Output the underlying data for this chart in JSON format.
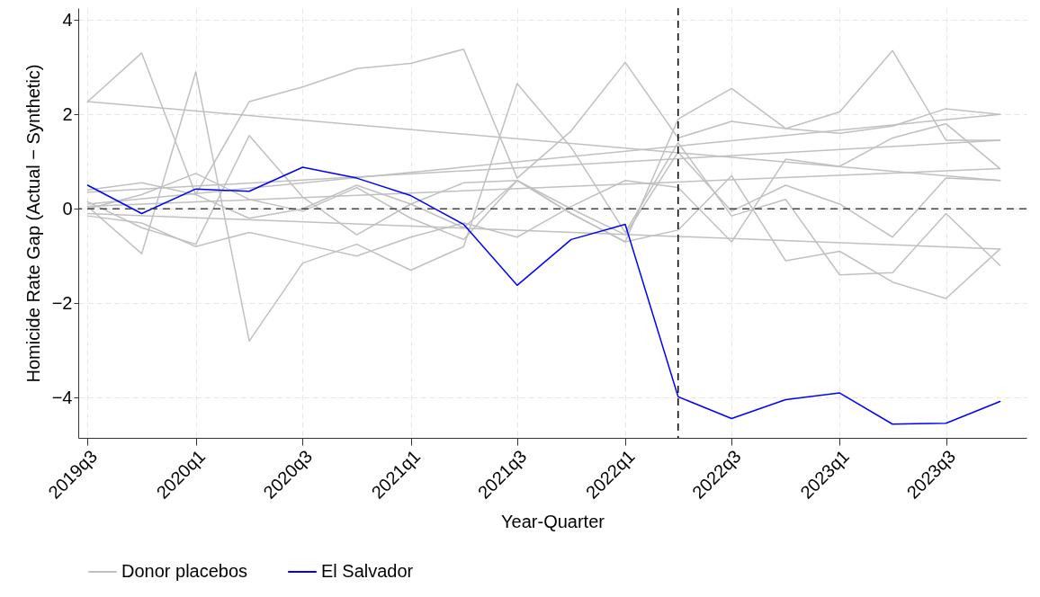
{
  "chart_data": {
    "type": "line",
    "xlabel": "Year-Quarter",
    "ylabel": "Homicide Rate Gap (Actual − Synthetic)",
    "x": [
      "2019-07",
      "2019-10",
      "2020-01",
      "2020-04",
      "2020-07",
      "2020-10",
      "2021-01",
      "2021-04",
      "2021-07",
      "2021-10",
      "2022-01",
      "2022-04",
      "2022-07",
      "2022-10",
      "2023-01",
      "2023-04",
      "2023-07",
      "2023-10"
    ],
    "series": [
      {
        "name": "Donor placebos",
        "color": "#c0c0c0",
        "values": [
          2.27,
          3.3,
          0.3,
          -0.2,
          0.0,
          0.5,
          0.1,
          -0.4,
          0.6,
          -0.1,
          -0.7,
          1.9,
          2.55,
          1.7,
          2.05,
          3.35,
          1.45,
          1.45
        ]
      },
      {
        "color": "#c0c0c0",
        "values": [
          0.05,
          -0.95,
          2.9,
          -2.8,
          -1.15,
          -0.75,
          -1.3,
          -0.8,
          2.65,
          1.3,
          -0.5,
          1.4,
          -0.15,
          0.2,
          -1.4,
          -1.35,
          -0.1,
          -1.2
        ]
      },
      {
        "color": "#c0c0c0",
        "values": [
          0.4,
          0.55,
          0.3,
          2.27,
          2.58,
          2.97,
          3.08,
          3.38,
          0.65,
          1.65,
          3.1,
          1.5,
          1.85,
          1.7,
          1.6,
          1.75,
          2.12,
          2.0
        ]
      },
      {
        "color": "#c0c0c0",
        "values": [
          0.15,
          -0.4,
          -0.75,
          1.55,
          0.25,
          -0.55,
          0.1,
          0.55,
          0.6,
          -0.1,
          -0.7,
          -0.45,
          0.7,
          -1.1,
          -0.9,
          -1.55,
          -1.9,
          -0.85
        ]
      },
      {
        "color": "#c0c0c0",
        "values": [
          -0.15,
          -0.3,
          -0.8,
          -0.5,
          -0.75,
          -1.0,
          -0.6,
          -0.3,
          -0.6,
          0.05,
          0.6,
          0.45,
          -0.7,
          1.05,
          0.9,
          1.5,
          1.8,
          0.85
        ]
      },
      {
        "color": "#c0c0c0",
        "values": [
          0.0,
          0.3,
          0.75,
          0.2,
          -0.05,
          0.45,
          -0.2,
          -0.65,
          0.6,
          0.0,
          -0.55,
          1.2,
          -0.05,
          0.5,
          0.1,
          -0.6,
          0.65,
          0.6
        ]
      },
      {
        "color": "#c0c0c0",
        "x": [
          "2019-07",
          "2023-10"
        ],
        "values": [
          2.27,
          0.6
        ]
      },
      {
        "color": "#c0c0c0",
        "x": [
          "2019-07",
          "2023-10"
        ],
        "values": [
          0.35,
          1.45
        ]
      },
      {
        "color": "#c0c0c0",
        "x": [
          "2019-07",
          "2023-10"
        ],
        "values": [
          0.05,
          0.85
        ]
      },
      {
        "color": "#c0c0c0",
        "x": [
          "2019-07",
          "2023-10"
        ],
        "values": [
          -0.1,
          -0.85
        ]
      },
      {
        "color": "#c0c0c0",
        "x": [
          "2019-07",
          "2023-10"
        ],
        "values": [
          0.1,
          2.0
        ]
      },
      {
        "name": "El Salvador",
        "color": "#0000ff",
        "values": [
          0.5,
          -0.1,
          0.42,
          0.37,
          0.88,
          0.65,
          0.28,
          -0.33,
          -1.62,
          -0.65,
          -0.33,
          -3.98,
          -4.44,
          -4.04,
          -3.9,
          -4.56,
          -4.54,
          -4.08
        ]
      }
    ],
    "xlim": [
      "2019-06-15",
      "2023-11-15"
    ],
    "xticks": [
      {
        "value": "2019-07",
        "label": "2019q3"
      },
      {
        "value": "2020-01",
        "label": "2020q1"
      },
      {
        "value": "2020-07",
        "label": "2020q3"
      },
      {
        "value": "2021-01",
        "label": "2021q1"
      },
      {
        "value": "2021-07",
        "label": "2021q3"
      },
      {
        "value": "2022-01",
        "label": "2022q1"
      },
      {
        "value": "2022-07",
        "label": "2022q3"
      },
      {
        "value": "2023-01",
        "label": "2023q1"
      },
      {
        "value": "2023-07",
        "label": "2023q3"
      }
    ],
    "ylim": [
      -4.85,
      4.25
    ],
    "yticks": [
      -4,
      -2,
      0,
      2,
      4
    ],
    "ref_lines": [
      {
        "axis": "y",
        "value": 0,
        "color": "#444444",
        "line_style": "dashed"
      },
      {
        "axis": "x",
        "value": "2022-04",
        "color": "#000000",
        "line_style": "dashed"
      }
    ],
    "grid": true,
    "legend": "bottom",
    "line_style": "solid"
  }
}
